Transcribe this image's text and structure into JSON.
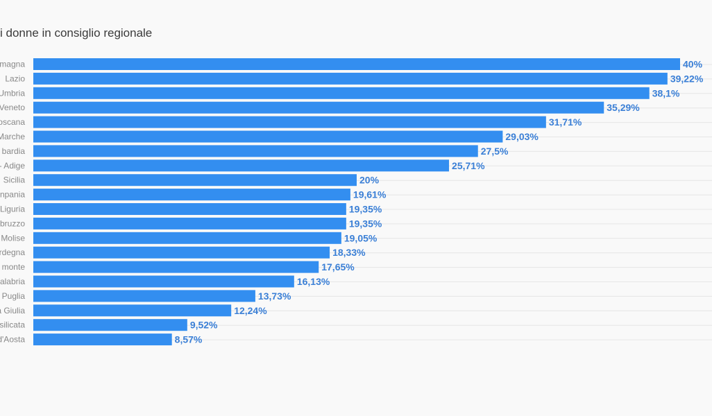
{
  "colors": {
    "bar": "#338ef0",
    "value_label": "#3a7fd6",
    "grid": "#e6e6e6"
  },
  "chart_data": {
    "type": "bar",
    "orientation": "horizontal",
    "title": "i donne in consiglio regionale",
    "xlabel": "",
    "ylabel": "",
    "grid": true,
    "xlim": [
      0,
      40
    ],
    "categories": [
      "magna",
      "Lazio",
      "Umbria",
      "Veneto",
      "oscana",
      "Marche",
      "bardia",
      "- Adige",
      "Sicilia",
      "npania",
      "Liguria",
      "bruzzo",
      "Molise",
      "rdegna",
      "monte",
      "alabria",
      "Puglia",
      "a Giulia",
      "silicata",
      "d'Aosta"
    ],
    "values": [
      40,
      39.22,
      38.1,
      35.29,
      31.71,
      29.03,
      27.5,
      25.71,
      20,
      19.61,
      19.35,
      19.35,
      19.05,
      18.33,
      17.65,
      16.13,
      13.73,
      12.24,
      9.52,
      8.57
    ],
    "value_labels": [
      "40%",
      "39,22%",
      "38,1%",
      "35,29%",
      "31,71%",
      "29,03%",
      "27,5%",
      "25,71%",
      "20%",
      "19,61%",
      "19,35%",
      "19,35%",
      "19,05%",
      "18,33%",
      "17,65%",
      "16,13%",
      "13,73%",
      "12,24%",
      "9,52%",
      "8,57%"
    ]
  }
}
